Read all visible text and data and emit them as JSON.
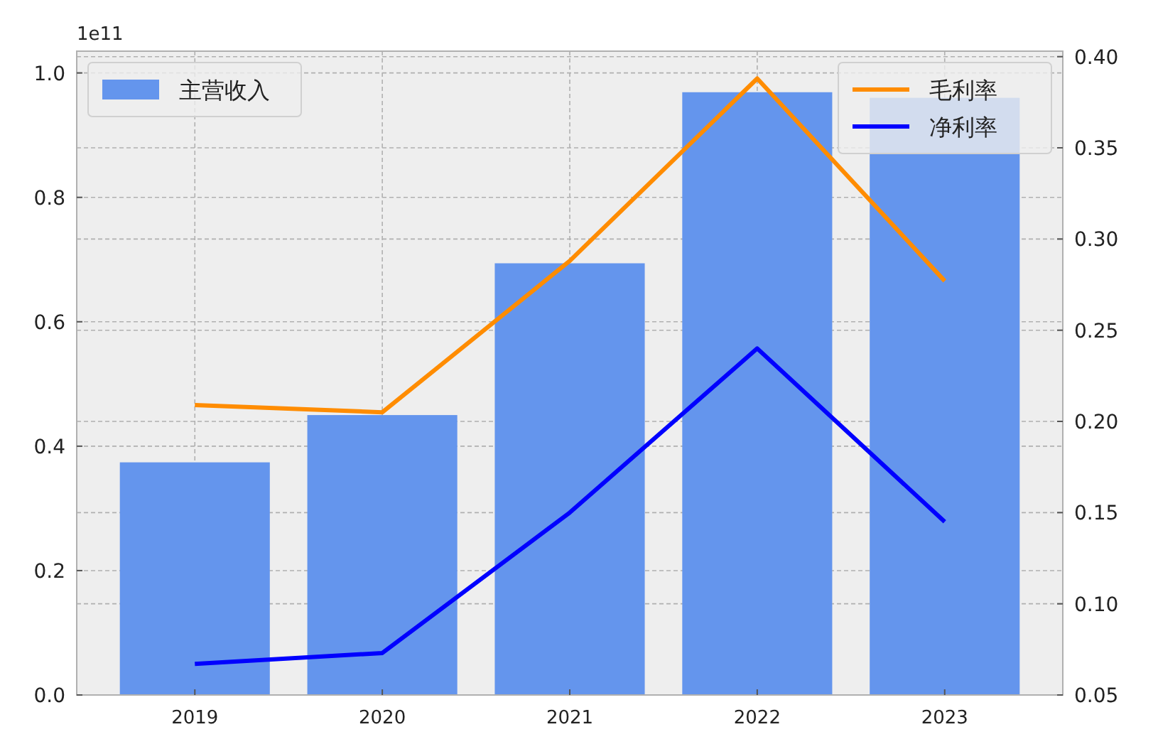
{
  "chart_data": {
    "type": "bar",
    "categories": [
      "2019",
      "2020",
      "2021",
      "2022",
      "2023"
    ],
    "series": [
      {
        "name": "主营收入",
        "color": "#6495ed",
        "values": [
          0.374,
          0.45,
          0.694,
          0.969,
          0.96
        ]
      },
      {
        "name": "毛利率",
        "type": "line",
        "axis": "y2",
        "color": "#ff8c00",
        "values": [
          0.209,
          0.205,
          0.288,
          0.388,
          0.277
        ]
      },
      {
        "name": "净利率",
        "type": "line",
        "axis": "y2",
        "color": "#0000ff",
        "values": [
          0.067,
          0.073,
          0.15,
          0.24,
          0.145
        ]
      }
    ],
    "ylim": [
      0,
      1.035
    ],
    "yticks": [
      {
        "value": 0,
        "label": "0.0"
      },
      0.2,
      0.4,
      0.6,
      0.8,
      {
        "value": 1,
        "label": "1.0"
      }
    ],
    "y2lim": [
      0.05,
      0.403
    ],
    "y2ticks": [
      {
        "value": 0.05,
        "label": "0.05"
      },
      {
        "value": 0.1,
        "label": "0.10"
      },
      {
        "value": 0.15,
        "label": "0.15"
      },
      {
        "value": 0.2,
        "label": "0.20"
      },
      {
        "value": 0.25,
        "label": "0.25"
      },
      {
        "value": 0.3,
        "label": "0.30"
      },
      {
        "value": 0.35,
        "label": "0.35"
      },
      {
        "value": 0.4,
        "label": "0.40"
      }
    ],
    "annotations": [
      "1e11"
    ],
    "grid": true,
    "legend": "top"
  }
}
